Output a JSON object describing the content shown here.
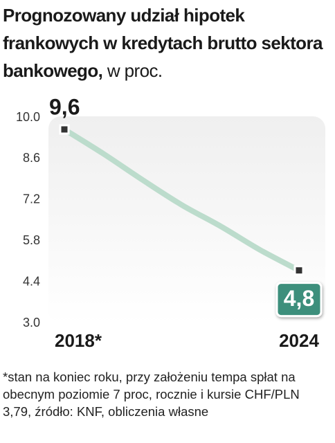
{
  "chart_data": {
    "type": "line",
    "title": "Prognozowany udział hipotek frankowych w kredytach brutto sektora bankowego,",
    "unit": "w proc.",
    "categories": [
      "2018*",
      null,
      null,
      null,
      null,
      null,
      "2024"
    ],
    "values": [
      9.6,
      8.77,
      7.88,
      7.03,
      6.3,
      5.5,
      4.8
    ],
    "value_labels": [
      "9,6",
      null,
      null,
      null,
      null,
      null,
      "4,8"
    ],
    "color": "#bcdccc",
    "ylim": [
      3.0,
      10.0
    ],
    "yticks": [
      {
        "value": 10,
        "label": "10.0"
      },
      {
        "value": 8.6,
        "label": "8.6"
      },
      {
        "value": 7.2,
        "label": "7.2"
      },
      {
        "value": 5.8,
        "label": "5.8"
      },
      {
        "value": 4.4,
        "label": "4.4"
      },
      {
        "value": 3,
        "label": "3.0"
      }
    ],
    "note": "*stan na koniec roku, przy założeniu tempa spłat na obecnym poziomie 7 proc, rocznie i kursie CHF/PLN 3,79, źródło: KNF, obliczenia własne"
  }
}
